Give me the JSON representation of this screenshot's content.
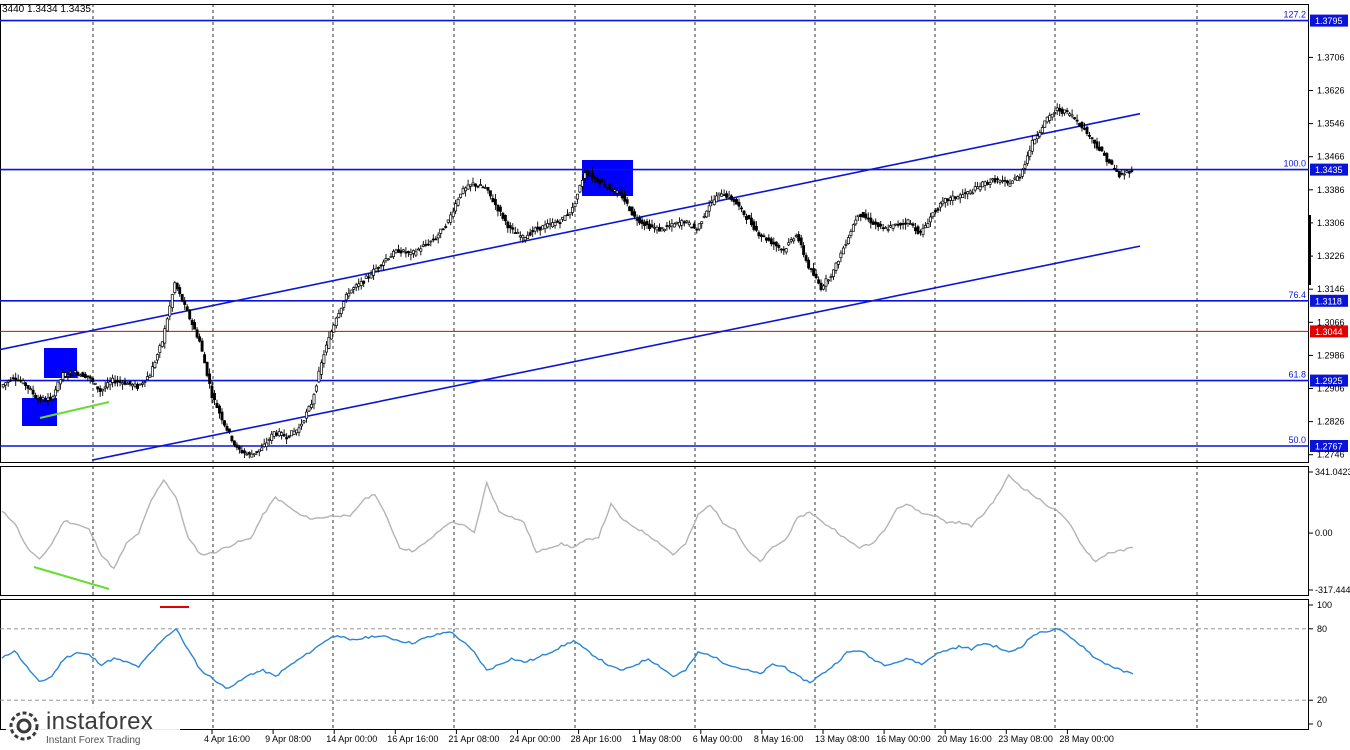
{
  "header": {
    "ohlc": "3440 1.3434 1.3435"
  },
  "brand": {
    "name": "instaforex",
    "tagline": "Instant Forex Trading",
    "logo_icon": "instaforex-logo-icon"
  },
  "colors": {
    "level": "#0a14d8",
    "red_level": "#e00000",
    "macd": "#b4b4b4",
    "rsi": "#2a86d8",
    "box": "#0000ff",
    "divergence": "#66dd33",
    "candle": "#000000"
  },
  "chart_data": [
    {
      "type": "candlestick",
      "title": "",
      "ylim": [
        1.2726,
        1.3835
      ],
      "y_ticks": [
        "1.3706",
        "1.3626",
        "1.3546",
        "1.3466",
        "1.3386",
        "1.3306",
        "1.3226",
        "1.3146",
        "1.3066",
        "1.2986",
        "1.2906",
        "1.2826",
        "1.2746"
      ],
      "x_ticks": [
        "4 Apr 16:00",
        "9 Apr 08:00",
        "14 Apr 00:00",
        "16 Apr 16:00",
        "21 Apr 08:00",
        "24 Apr 00:00",
        "28 Apr 16:00",
        "1 May 08:00",
        "6 May 00:00",
        "8 May 16:00",
        "13 May 08:00",
        "16 May 00:00",
        "20 May 16:00",
        "23 May 08:00",
        "28 May 00:00"
      ],
      "close_path": [
        1.291,
        1.2935,
        1.2915,
        1.288,
        1.288,
        1.294,
        1.2945,
        1.2935,
        1.29,
        1.2925,
        1.292,
        1.291,
        1.294,
        1.302,
        1.316,
        1.309,
        1.302,
        1.289,
        1.282,
        1.276,
        1.2745,
        1.276,
        1.28,
        1.279,
        1.281,
        1.287,
        1.299,
        1.308,
        1.314,
        1.316,
        1.319,
        1.322,
        1.324,
        1.323,
        1.325,
        1.327,
        1.331,
        1.338,
        1.34,
        1.339,
        1.334,
        1.329,
        1.327,
        1.329,
        1.33,
        1.331,
        1.334,
        1.343,
        1.341,
        1.339,
        1.337,
        1.332,
        1.33,
        1.329,
        1.33,
        1.331,
        1.329,
        1.335,
        1.338,
        1.336,
        1.332,
        1.328,
        1.326,
        1.324,
        1.328,
        1.32,
        1.315,
        1.319,
        1.326,
        1.333,
        1.331,
        1.329,
        1.33,
        1.331,
        1.328,
        1.333,
        1.336,
        1.337,
        1.338,
        1.34,
        1.341,
        1.34,
        1.342,
        1.35,
        1.355,
        1.358,
        1.357,
        1.354,
        1.35,
        1.346,
        1.342,
        1.3435
      ],
      "horizontal_levels": [
        {
          "label": "127.2",
          "value": "1.3795",
          "v": 1.3795
        },
        {
          "label": "100.0",
          "value": "1.3435",
          "v": 1.3435
        },
        {
          "label": "76.4",
          "value": "1.3118",
          "v": 1.3118
        },
        {
          "label": "",
          "value": "1.3044",
          "v": 1.3044,
          "red": true
        },
        {
          "label": "61.8",
          "value": "1.2925",
          "v": 1.2925
        },
        {
          "label": "50.0",
          "value": "1.2767",
          "v": 1.2767
        }
      ],
      "channel_lines": [
        {
          "from": [
            0,
            1.3
          ],
          "to": [
            1140,
            1.357
          ]
        },
        {
          "from": [
            92,
            1.2733
          ],
          "to": [
            1140,
            1.325
          ]
        }
      ]
    },
    {
      "type": "line",
      "title": "",
      "ylim": [
        -317.444,
        341.0423
      ],
      "y_ticks": [
        "341.0423",
        "0.00",
        "-317.444"
      ],
      "values": [
        120,
        60,
        -80,
        -150,
        -60,
        70,
        50,
        20,
        -120,
        -200,
        -60,
        0,
        180,
        300,
        200,
        -30,
        -120,
        -110,
        -80,
        -50,
        -30,
        100,
        200,
        150,
        100,
        80,
        90,
        100,
        90,
        180,
        220,
        80,
        -80,
        -100,
        -60,
        0,
        60,
        50,
        0,
        280,
        120,
        90,
        60,
        -110,
        -80,
        -60,
        -80,
        -40,
        -20,
        160,
        70,
        30,
        -10,
        -60,
        -120,
        -60,
        100,
        160,
        60,
        20,
        -100,
        -160,
        -80,
        -40,
        80,
        120,
        60,
        20,
        -40,
        -80,
        -60,
        20,
        140,
        160,
        110,
        100,
        60,
        60,
        40,
        110,
        200,
        320,
        260,
        210,
        160,
        120,
        40,
        -80,
        -160,
        -110,
        -100,
        -80
      ]
    },
    {
      "type": "line",
      "title": "",
      "ylim": [
        0,
        100
      ],
      "y_ticks": [
        "100",
        "80",
        "20",
        "0"
      ],
      "values": [
        55,
        62,
        48,
        35,
        40,
        55,
        60,
        58,
        50,
        55,
        52,
        48,
        60,
        72,
        80,
        62,
        45,
        38,
        30,
        35,
        42,
        45,
        40,
        48,
        55,
        62,
        70,
        75,
        70,
        72,
        74,
        73,
        70,
        68,
        72,
        75,
        78,
        70,
        60,
        45,
        50,
        55,
        52,
        55,
        60,
        65,
        70,
        62,
        55,
        48,
        45,
        50,
        55,
        48,
        40,
        45,
        60,
        58,
        52,
        48,
        45,
        42,
        50,
        48,
        40,
        35,
        42,
        50,
        60,
        62,
        55,
        50,
        52,
        55,
        50,
        58,
        62,
        65,
        63,
        68,
        65,
        60,
        65,
        75,
        78,
        80,
        72,
        65,
        55,
        50,
        45,
        42
      ],
      "reference_lines": [
        80,
        20
      ]
    }
  ]
}
